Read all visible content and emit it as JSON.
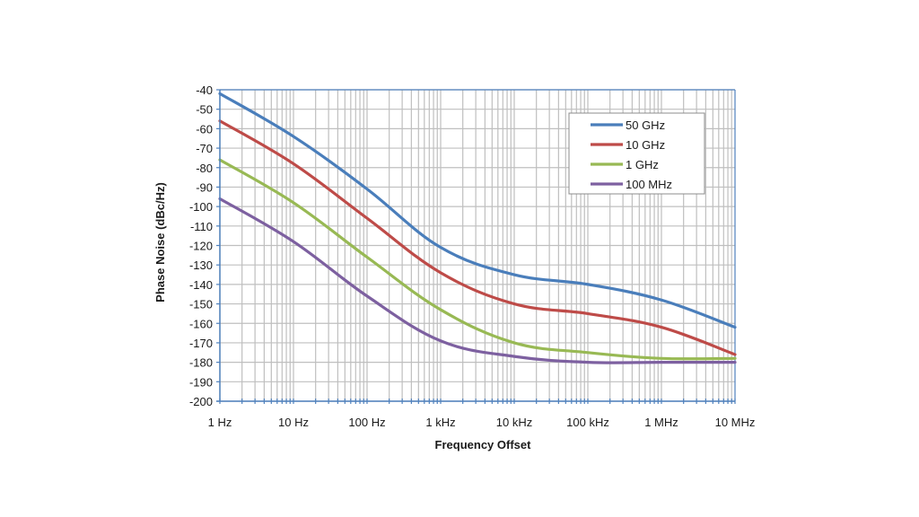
{
  "chart_data": {
    "type": "line",
    "title": "",
    "xlabel": "Frequency Offset",
    "ylabel": "Phase Noise (dBc/Hz)",
    "xscale": "log",
    "x": [
      1,
      10,
      100,
      1000,
      10000,
      100000,
      1000000,
      10000000
    ],
    "x_tick_labels": [
      "1 Hz",
      "10 Hz",
      "100 Hz",
      "1 kHz",
      "10 kHz",
      "100 kHz",
      "1 MHz",
      "10 MHz"
    ],
    "y_ticks": [
      -40,
      -50,
      -60,
      -70,
      -80,
      -90,
      -100,
      -110,
      -120,
      -130,
      -140,
      -150,
      -160,
      -170,
      -180,
      -190,
      -200
    ],
    "ylim": [
      -200,
      -40
    ],
    "grid": true,
    "legend_position": "upper right",
    "series": [
      {
        "name": "50 GHz",
        "color": "#4a7ebb",
        "values": [
          -42,
          -64,
          -91,
          -121,
          -135,
          -140,
          -148,
          -162
        ]
      },
      {
        "name": "10 GHz",
        "color": "#be4b48",
        "values": [
          -56,
          -78,
          -106,
          -134,
          -150,
          -155,
          -162,
          -176
        ]
      },
      {
        "name": "1 GHz",
        "color": "#98b954",
        "values": [
          -76,
          -98,
          -126,
          -153,
          -170,
          -175,
          -178,
          -178
        ]
      },
      {
        "name": "100 MHz",
        "color": "#7d60a0",
        "values": [
          -96,
          -118,
          -146,
          -169,
          -177,
          -180,
          -180,
          -180
        ]
      }
    ]
  },
  "legend": {
    "items": [
      {
        "label": "50 GHz",
        "color": "#4a7ebb"
      },
      {
        "label": "10 GHz",
        "color": "#be4b48"
      },
      {
        "label": "1 GHz",
        "color": "#98b954"
      },
      {
        "label": "100 MHz",
        "color": "#7d60a0"
      }
    ]
  },
  "axes": {
    "xlabel": "Frequency Offset",
    "ylabel": "Phase Noise (dBc/Hz)"
  },
  "colors": {
    "axis": "#4f81bd",
    "grid": "#bfbfbf"
  }
}
